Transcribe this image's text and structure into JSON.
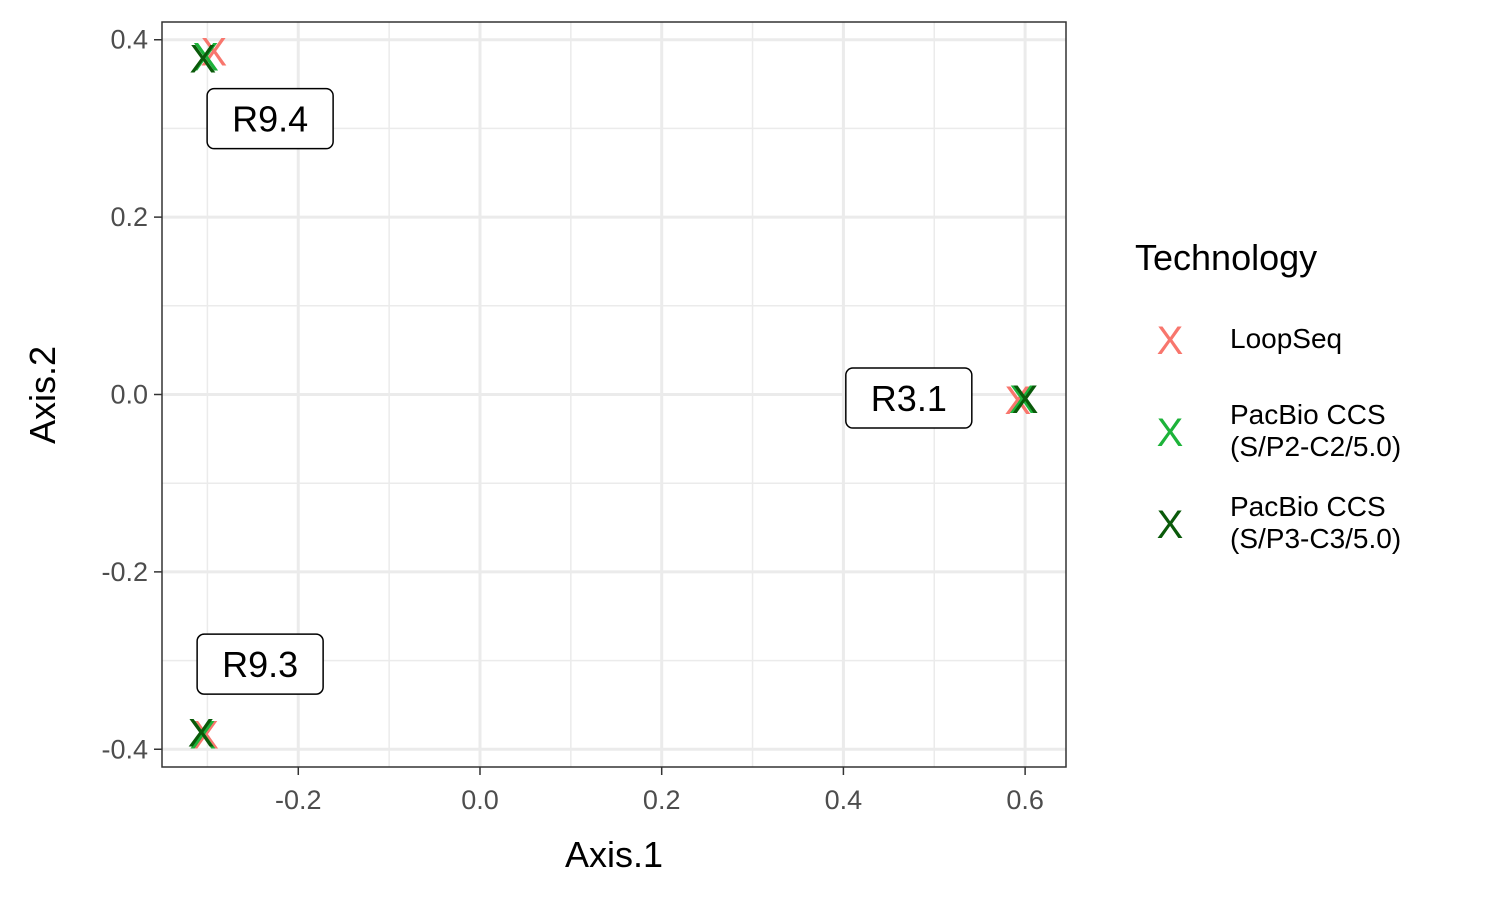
{
  "chart_data": {
    "type": "scatter",
    "xlabel": "Axis.1",
    "ylabel": "Axis.2",
    "xlim": [
      -0.35,
      0.645
    ],
    "ylim": [
      -0.42,
      0.42
    ],
    "x_ticks": [
      -0.2,
      0.0,
      0.2,
      0.4,
      0.6
    ],
    "x_tick_labels": [
      "-0.2",
      "0.0",
      "0.2",
      "0.4",
      "0.6"
    ],
    "y_ticks": [
      -0.4,
      -0.2,
      0.0,
      0.2,
      0.4
    ],
    "y_tick_labels": [
      "-0.4",
      "-0.2",
      "0.0",
      "0.2",
      "0.4"
    ],
    "grid": true,
    "legend_position": "right",
    "legend_title": "Technology",
    "marker": "X",
    "series": [
      {
        "name": "LoopSeq",
        "color": "#F8766D",
        "label_lines": [
          "LoopSeq"
        ],
        "points": [
          {
            "x": -0.293,
            "y": 0.388
          },
          {
            "x": 0.592,
            "y": -0.005
          },
          {
            "x": -0.302,
            "y": -0.382
          }
        ]
      },
      {
        "name": "PacBio CCS (S/P2-C2/5.0)",
        "color": "#1DB33A",
        "label_lines": [
          "PacBio CCS",
          "(S/P2-C2/5.0)"
        ],
        "points": [
          {
            "x": -0.302,
            "y": 0.382
          },
          {
            "x": 0.597,
            "y": -0.004
          },
          {
            "x": -0.305,
            "y": -0.382
          }
        ]
      },
      {
        "name": "PacBio CCS (S/P3-C3/5.0)",
        "color": "#0A5A0A",
        "label_lines": [
          "PacBio CCS",
          "(S/P3-C3/5.0)"
        ],
        "points": [
          {
            "x": -0.305,
            "y": 0.38
          },
          {
            "x": 0.6,
            "y": -0.004
          },
          {
            "x": -0.307,
            "y": -0.38
          }
        ]
      }
    ],
    "annotations": [
      {
        "text": "R9.4",
        "x": -0.231,
        "y": 0.311
      },
      {
        "text": "R3.1",
        "x": 0.472,
        "y": -0.004
      },
      {
        "text": "R9.3",
        "x": -0.242,
        "y": -0.304
      }
    ]
  }
}
